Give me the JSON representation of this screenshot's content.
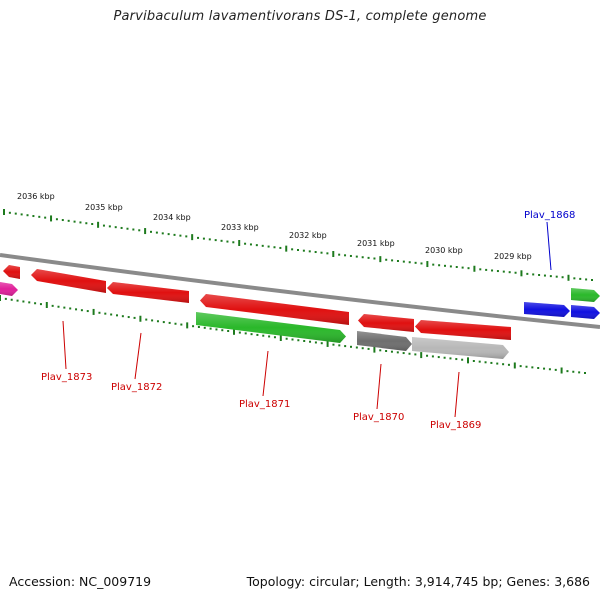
{
  "title": "Parvibaculum lavamentivorans DS-1, complete genome",
  "footer": {
    "accession": "Accession: NC_009719",
    "summary": "Topology: circular; Length: 3,914,745 bp; Genes: 3,686"
  },
  "colors": {
    "backbone": "#8a8a8a",
    "tick": "#1d7a1d",
    "gene_red": "#e01010",
    "gene_green": "#2ab82a",
    "gene_blue": "#1010e0",
    "gene_magenta": "#e0209a",
    "gene_gray_dark": "#6e6e6e",
    "gene_gray_light": "#b8b8b8",
    "label_red": "#cc0000",
    "label_blue": "#0000cc"
  },
  "scale_labels": [
    "2036 kbp",
    "2035 kbp",
    "2034 kbp",
    "2033 kbp",
    "2032 kbp",
    "2031 kbp",
    "2030 kbp",
    "2029 kbp"
  ],
  "gene_labels": [
    {
      "text": "Plav_1873",
      "color": "red"
    },
    {
      "text": "Plav_1872",
      "color": "red"
    },
    {
      "text": "Plav_1871",
      "color": "red"
    },
    {
      "text": "Plav_1870",
      "color": "red"
    },
    {
      "text": "Plav_1869",
      "color": "red"
    },
    {
      "text": "Plav_1868",
      "color": "blue"
    }
  ]
}
